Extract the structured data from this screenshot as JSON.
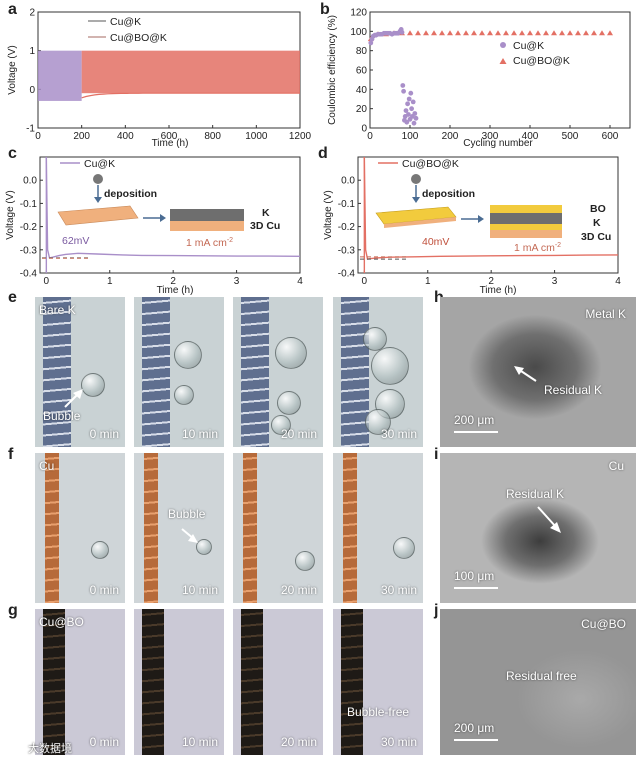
{
  "panels": {
    "a": "a",
    "b": "b",
    "c": "c",
    "d": "d",
    "e": "e",
    "f": "f",
    "g": "g",
    "h": "h",
    "i": "i",
    "j": "j"
  },
  "colors": {
    "cuk": "#a98fc9",
    "cubo": "#e37064",
    "wire_k": "#5f6f8f",
    "wire_cu": "#b66a3a",
    "wire_bo": "#1e1a16",
    "substrate": "#f0b07d",
    "bo_layer": "#f2cb3d",
    "k_layer": "#6e6e6e"
  },
  "chart_data": [
    {
      "id": "a",
      "type": "line",
      "xlabel": "Time (h)",
      "ylabel": "Voltage (V)",
      "xlim": [
        0,
        1200
      ],
      "ylim": [
        -1,
        2
      ],
      "xticks": [
        0,
        200,
        400,
        600,
        800,
        1000,
        1200
      ],
      "yticks": [
        -1,
        0,
        1,
        2
      ],
      "legend_position": "top-left",
      "series": [
        {
          "name": "Cu@K",
          "color_key": "cuk",
          "x_range": [
            0,
            200
          ],
          "upper": 1,
          "lower": -0.3
        },
        {
          "name": "Cu@BO@K",
          "color_key": "cubo",
          "x_range": [
            200,
            1200
          ],
          "upper": 1,
          "lower": -0.1
        }
      ]
    },
    {
      "id": "b",
      "type": "scatter",
      "xlabel": "Cycling number",
      "ylabel": "Coulombic efficiency (%)",
      "xlim": [
        0,
        650
      ],
      "ylim": [
        0,
        120
      ],
      "xticks": [
        0,
        100,
        200,
        300,
        400,
        500,
        600
      ],
      "yticks": [
        0,
        20,
        40,
        60,
        80,
        100,
        120
      ],
      "legend_position": "center-right",
      "series": [
        {
          "name": "Cu@K",
          "marker": "circle",
          "color_key": "cuk",
          "x": [
            2,
            5,
            8,
            12,
            15,
            20,
            25,
            30,
            35,
            40,
            45,
            50,
            55,
            60,
            65,
            70,
            75,
            78,
            80,
            82,
            84,
            86,
            88,
            90,
            92,
            94,
            96,
            98,
            100,
            102,
            104,
            106,
            108,
            110,
            112,
            115
          ],
          "y": [
            88,
            92,
            95,
            96,
            96,
            97,
            97,
            97,
            98,
            98,
            98,
            98,
            97,
            98,
            98,
            98,
            100,
            102,
            99,
            44,
            38,
            8,
            12,
            18,
            6,
            25,
            14,
            30,
            9,
            36,
            20,
            12,
            27,
            5,
            15,
            10
          ]
        },
        {
          "name": "Cu@BO@K",
          "marker": "triangle",
          "color_key": "cubo",
          "x": [
            2,
            20,
            40,
            60,
            80,
            100,
            120,
            140,
            160,
            180,
            200,
            220,
            240,
            260,
            280,
            300,
            320,
            340,
            360,
            380,
            400,
            420,
            440,
            460,
            480,
            500,
            520,
            540,
            560,
            580,
            600
          ],
          "y": [
            92,
            97,
            97,
            98,
            98,
            98,
            98,
            98,
            98,
            98,
            98,
            98,
            98,
            98,
            98,
            98,
            98,
            98,
            98,
            98,
            98,
            98,
            98,
            98,
            98,
            98,
            98,
            98,
            98,
            98,
            98
          ]
        }
      ]
    },
    {
      "id": "c",
      "type": "line",
      "xlabel": "Time (h)",
      "ylabel": "Voltage (V)",
      "xlim": [
        -0.1,
        4
      ],
      "ylim": [
        -0.4,
        0.1
      ],
      "xticks": [
        0,
        1,
        2,
        3,
        4
      ],
      "yticks": [
        -0.4,
        -0.3,
        -0.2,
        -0.1,
        0.0
      ],
      "legend_position": "top-left",
      "series": [
        {
          "name": "Cu@K",
          "color_key": "cuk",
          "x": [
            0,
            0.02,
            0.05,
            0.1,
            0.2,
            0.3,
            0.5,
            0.8,
            1.2,
            1.5,
            2,
            2.5,
            3,
            3.5,
            4
          ],
          "y": [
            0.1,
            -0.3,
            -0.335,
            -0.332,
            -0.325,
            -0.32,
            -0.315,
            -0.318,
            -0.322,
            -0.324,
            -0.325,
            -0.326,
            -0.327,
            -0.327,
            -0.328
          ]
        }
      ],
      "annotations": {
        "overpotential": "62mV",
        "current": "1 mA cm",
        "current_exp": "-2",
        "step": "deposition",
        "layers": [
          "K",
          "3D Cu"
        ]
      }
    },
    {
      "id": "d",
      "type": "line",
      "xlabel": "Time (h)",
      "ylabel": "Voltage (V)",
      "xlim": [
        -0.1,
        4
      ],
      "ylim": [
        -0.4,
        0.1
      ],
      "xticks": [
        0,
        1,
        2,
        3,
        4
      ],
      "yticks": [
        -0.4,
        -0.3,
        -0.2,
        -0.1,
        0.0
      ],
      "legend_position": "top-left",
      "series": [
        {
          "name": "Cu@BO@K",
          "color_key": "cubo",
          "x": [
            0,
            0.02,
            0.05,
            0.1,
            0.2,
            0.4,
            0.8,
            1.2,
            1.6,
            2,
            2.5,
            3,
            3.5,
            4
          ],
          "y": [
            0.1,
            -0.3,
            -0.34,
            -0.338,
            -0.335,
            -0.332,
            -0.33,
            -0.328,
            -0.327,
            -0.326,
            -0.325,
            -0.324,
            -0.323,
            -0.322
          ]
        }
      ],
      "annotations": {
        "overpotential": "40mV",
        "current": "1 mA cm",
        "current_exp": "-2",
        "step": "deposition",
        "layers": [
          "BO",
          "K",
          "3D Cu"
        ]
      }
    }
  ],
  "photos": {
    "e": {
      "labels": [
        "Bare K",
        "Bubble"
      ],
      "times": [
        "0 min",
        "10 min",
        "20 min",
        "30 min"
      ]
    },
    "f": {
      "labels": [
        "Cu",
        "Bubble"
      ],
      "times": [
        "0 min",
        "10 min",
        "20 min",
        "30 min"
      ]
    },
    "g": {
      "labels": [
        "Cu@BO",
        "Bubble-free"
      ],
      "times": [
        "0 min",
        "10 min",
        "20 min",
        "30 min"
      ]
    }
  },
  "sem": {
    "h": {
      "title": "Metal K",
      "note": "Residual K",
      "scale": "200 μm"
    },
    "i": {
      "title": "Cu",
      "note": "Residual K",
      "scale": "100 μm"
    },
    "j": {
      "title": "Cu@BO",
      "note": "Residual free",
      "scale": "200 μm"
    }
  },
  "watermark": "大数据境"
}
